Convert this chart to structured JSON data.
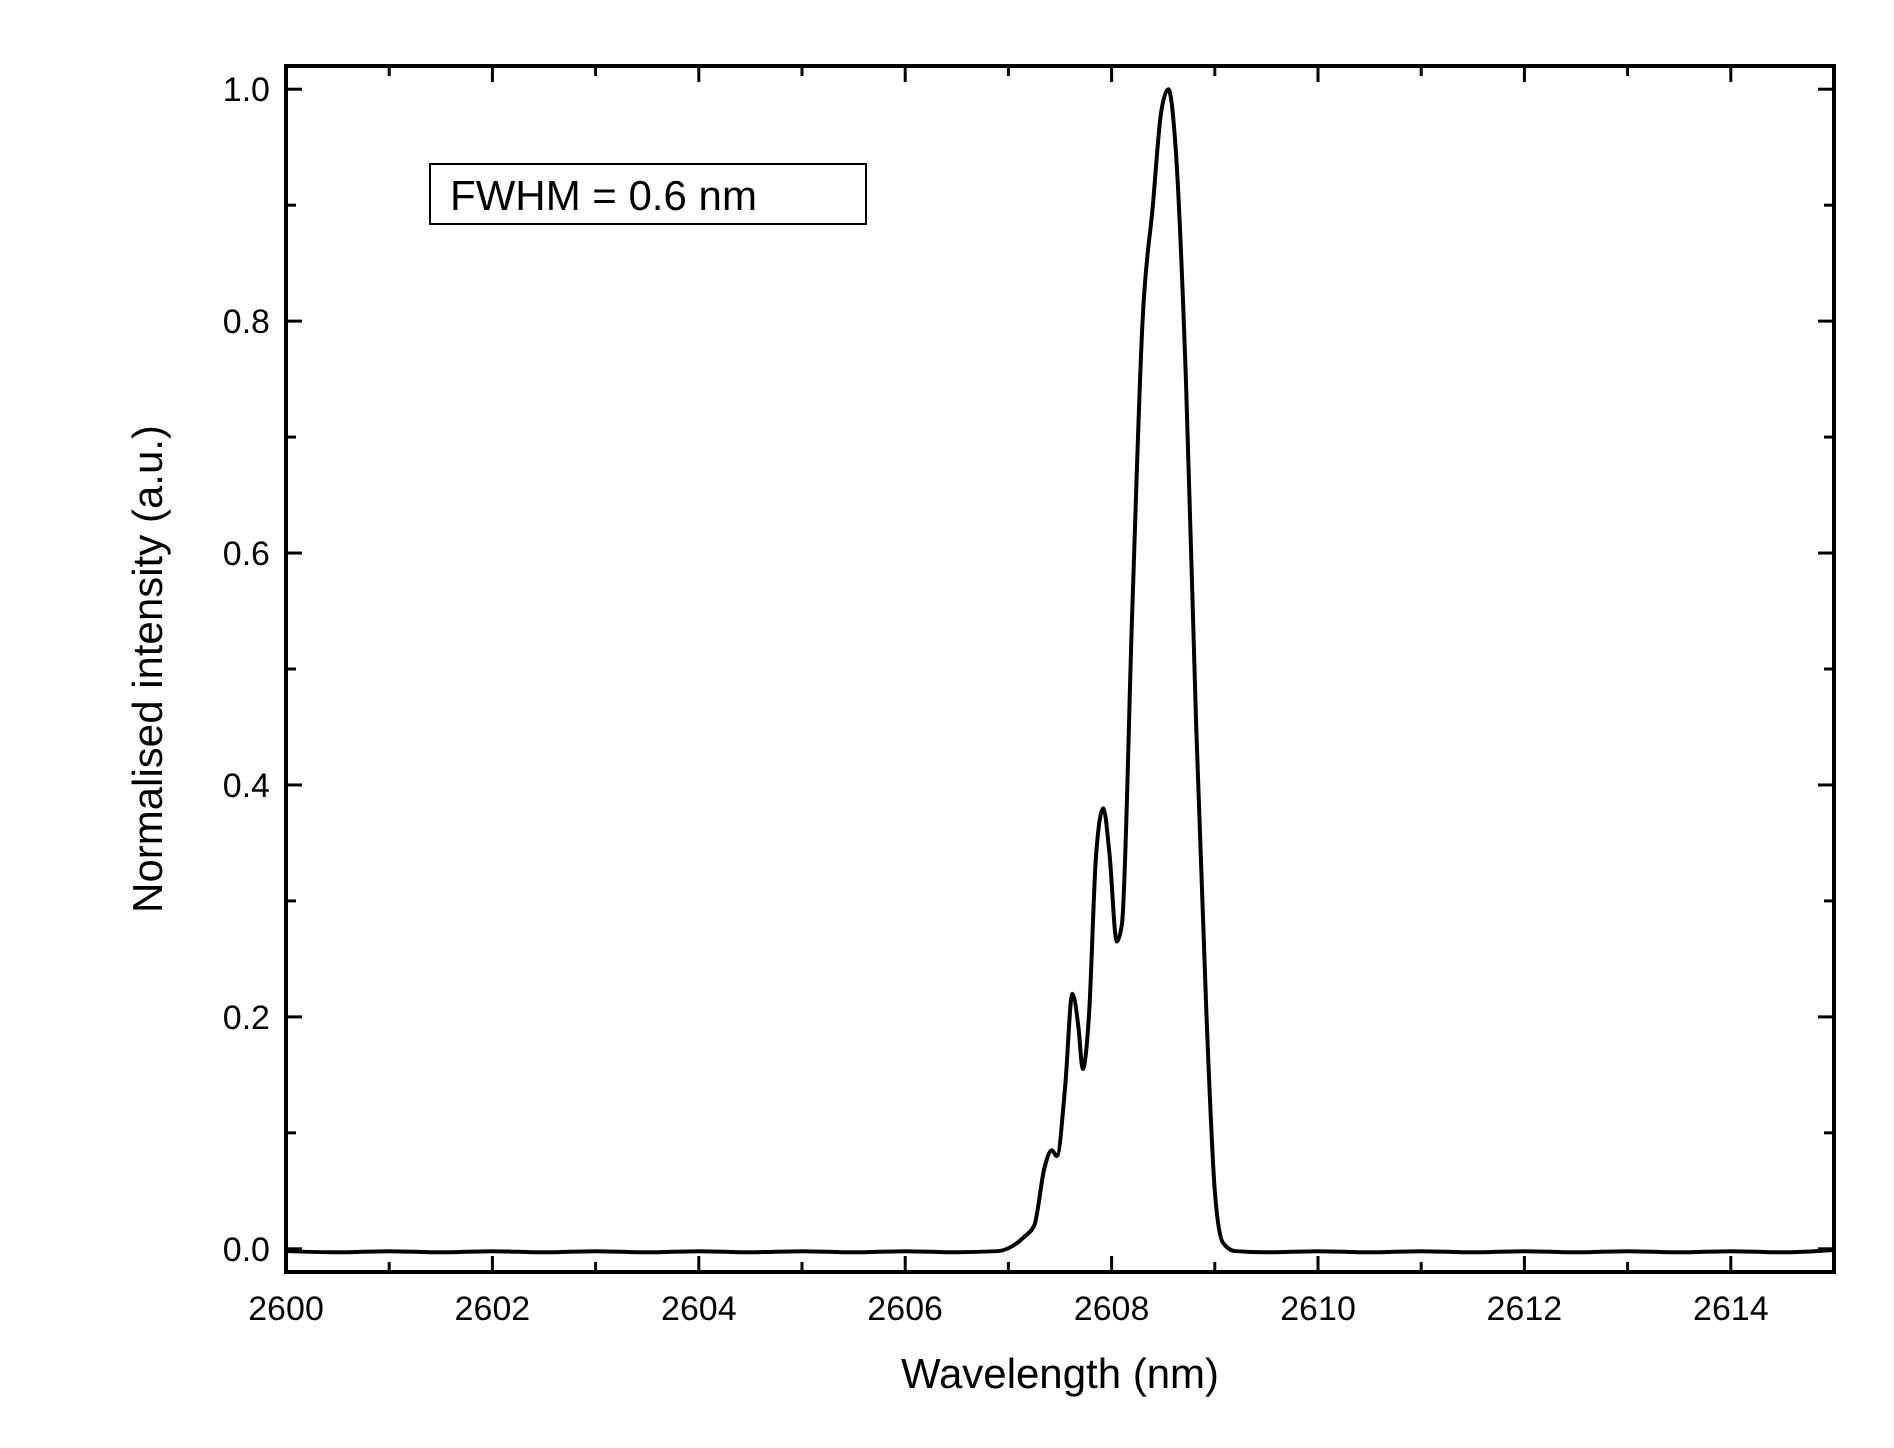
{
  "chart_data": {
    "type": "line",
    "xlabel": "Wavelength (nm)",
    "ylabel": "Normalised intensity (a.u.)",
    "annotations": [
      "FWHM = 0.6 nm"
    ],
    "xlim": [
      2600,
      2615
    ],
    "ylim": [
      -0.02,
      1.02
    ],
    "xticks": [
      2600,
      {
        "value": 2601,
        "label": null
      },
      2602,
      {
        "value": 2603,
        "label": null
      },
      2604,
      {
        "value": 2605,
        "label": null
      },
      2606,
      {
        "value": 2607,
        "label": null
      },
      2608,
      {
        "value": 2609,
        "label": null
      },
      2610,
      {
        "value": 2611,
        "label": null
      },
      2612,
      {
        "value": 2613,
        "label": null
      },
      2614,
      {
        "value": 2615,
        "label": null
      }
    ],
    "yticks": [
      {
        "value": 0,
        "label": "0.0"
      },
      {
        "value": 0.1,
        "label": null
      },
      {
        "value": 0.2,
        "label": "0.2"
      },
      {
        "value": 0.3,
        "label": null
      },
      {
        "value": 0.4,
        "label": "0.4"
      },
      {
        "value": 0.5,
        "label": null
      },
      {
        "value": 0.6,
        "label": "0.6"
      },
      {
        "value": 0.7,
        "label": null
      },
      {
        "value": 0.8,
        "label": "0.8"
      },
      {
        "value": 0.9,
        "label": null
      },
      {
        "value": 1.0,
        "label": "1.0"
      }
    ],
    "grid": false,
    "marker": "none",
    "line_style": "solid",
    "series": [
      {
        "color": "#000000",
        "x": [
          2600,
          2600.5,
          2601,
          2601.5,
          2602,
          2602.5,
          2603,
          2603.5,
          2604,
          2604.5,
          2605,
          2605.5,
          2606,
          2606.5,
          2606.9,
          2607.05,
          2607.15,
          2607.25,
          2607.35,
          2607.42,
          2607.47,
          2607.55,
          2607.62,
          2607.68,
          2607.72,
          2607.78,
          2607.85,
          2607.92,
          2607.98,
          2608.05,
          2608.1,
          2608.2,
          2608.3,
          2608.4,
          2608.48,
          2608.55,
          2608.62,
          2608.72,
          2608.82,
          2608.92,
          2609.0,
          2609.08,
          2609.2,
          2609.5,
          2610,
          2610.5,
          2611,
          2611.5,
          2612,
          2612.5,
          2613,
          2613.5,
          2614,
          2614.5,
          2615
        ],
        "values": [
          -0.002,
          -0.003,
          -0.002,
          -0.003,
          -0.002,
          -0.003,
          -0.002,
          -0.003,
          -0.002,
          -0.003,
          -0.002,
          -0.003,
          -0.002,
          -0.003,
          -0.002,
          0.003,
          0.01,
          0.02,
          0.07,
          0.085,
          0.08,
          0.14,
          0.22,
          0.19,
          0.155,
          0.2,
          0.34,
          0.38,
          0.34,
          0.265,
          0.28,
          0.55,
          0.8,
          0.9,
          0.98,
          1.0,
          0.95,
          0.75,
          0.45,
          0.2,
          0.05,
          0.005,
          -0.002,
          -0.003,
          -0.002,
          -0.003,
          -0.002,
          -0.003,
          -0.002,
          -0.003,
          -0.002,
          -0.003,
          -0.002,
          -0.003,
          -0.001
        ]
      }
    ]
  }
}
